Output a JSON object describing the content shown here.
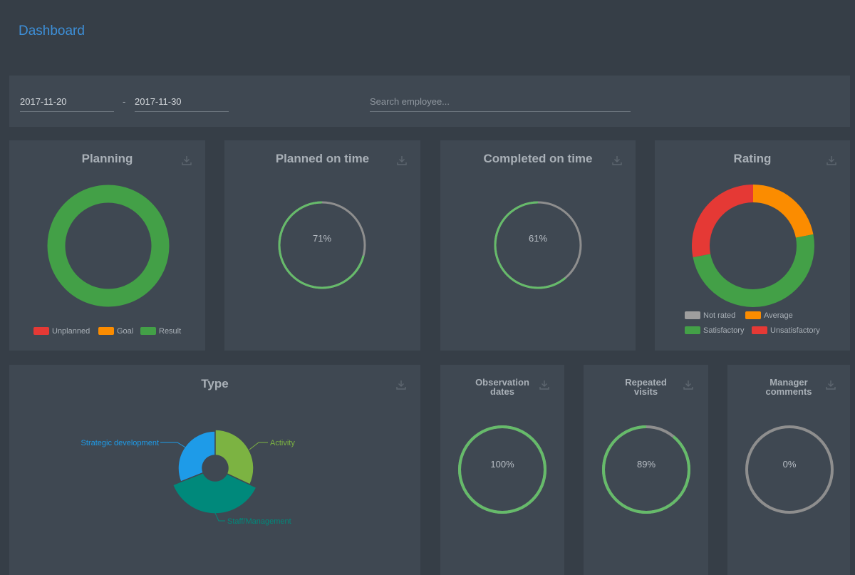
{
  "header": {
    "title": "Dashboard"
  },
  "filters": {
    "date_from": "2017-11-20",
    "date_separator": "-",
    "date_to": "2017-11-30",
    "search_placeholder": "Search employee..."
  },
  "colors": {
    "green": "#43a047",
    "orange": "#fb8c00",
    "red": "#e53935",
    "grey": "#9e9e9e",
    "ring_green": "#66bb6a",
    "ring_grey": "#8e8e8e",
    "blue": "#1e9be8",
    "lime": "#7cb342",
    "teal": "#00897b",
    "accent_title": "#3d8fd8"
  },
  "cards": {
    "planning": {
      "title": "Planning",
      "download_icon": "download-icon",
      "legend": [
        "Unplanned",
        "Goal",
        "Result"
      ]
    },
    "planned_on_time": {
      "title": "Planned on time",
      "value_label": "71%",
      "value": 0.71
    },
    "completed_on_time": {
      "title": "Completed on time",
      "value_label": "61%",
      "value": 0.61
    },
    "rating": {
      "title": "Rating",
      "legend": [
        "Not rated",
        "Average",
        "Satisfactory",
        "Unsatisfactory"
      ]
    },
    "type": {
      "title": "Type",
      "labels": [
        "Strategic development",
        "Activity",
        "Staff/Management"
      ]
    },
    "observation_dates": {
      "title_line1": "Observation",
      "title_line2": "dates",
      "value_label": "100%",
      "value": 1.0
    },
    "repeated_visits": {
      "title_line1": "Repeated",
      "title_line2": "visits",
      "value_label": "89%",
      "value": 0.89
    },
    "manager_comments": {
      "title_line1": "Manager",
      "title_line2": "comments",
      "value_label": "0%",
      "value": 0
    }
  },
  "chart_data": [
    {
      "type": "pie",
      "title": "Planning",
      "categories": [
        "Unplanned",
        "Goal",
        "Result"
      ],
      "values": [
        0,
        0,
        100
      ]
    },
    {
      "type": "pie",
      "title": "Rating",
      "categories": [
        "Not rated",
        "Average",
        "Satisfactory",
        "Unsatisfactory"
      ],
      "values": [
        0,
        22,
        50,
        28
      ]
    },
    {
      "type": "pie",
      "title": "Type",
      "categories": [
        "Activity",
        "Staff/Management",
        "Strategic development"
      ],
      "values": [
        32,
        37,
        31
      ]
    }
  ]
}
